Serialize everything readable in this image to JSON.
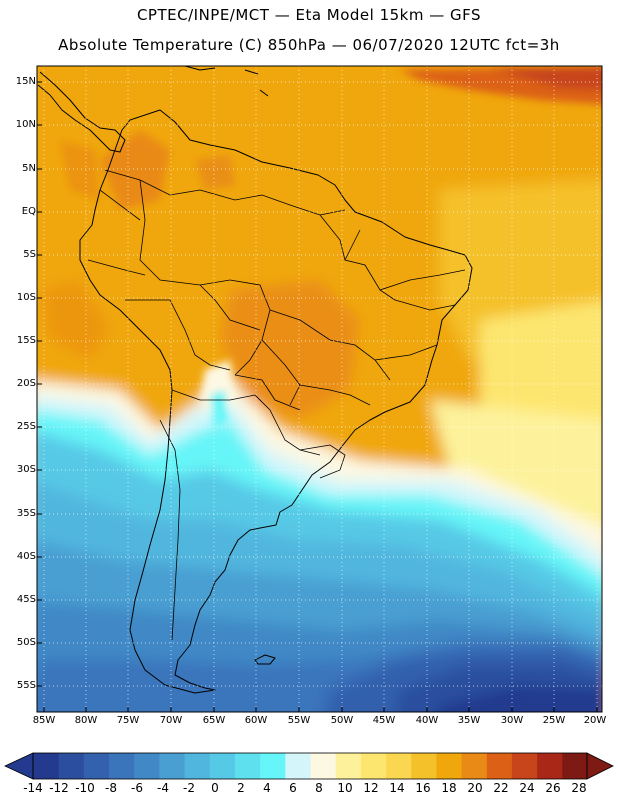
{
  "header": {
    "line1": "CPTEC/INPE/MCT —  Eta Model 15km — GFS",
    "line2": "Absolute Temperature (C) 850hPa — 06/07/2020 12UTC fct=3h"
  },
  "map": {
    "lat_labels": [
      "15N",
      "10N",
      "5N",
      "EQ",
      "5S",
      "10S",
      "15S",
      "20S",
      "25S",
      "30S",
      "35S",
      "40S",
      "45S",
      "50S",
      "55S"
    ],
    "lon_labels": [
      "85W",
      "80W",
      "75W",
      "70W",
      "65W",
      "60W",
      "55W",
      "50W",
      "45W",
      "40W",
      "35W",
      "30W",
      "25W",
      "20W"
    ]
  },
  "colorbar": {
    "labels": [
      "-14",
      "-12",
      "-10",
      "-8",
      "-6",
      "-4",
      "-2",
      "0",
      "2",
      "4",
      "6",
      "8",
      "10",
      "12",
      "14",
      "16",
      "18",
      "20",
      "22",
      "24",
      "26",
      "28"
    ],
    "colors": [
      "#233a8e",
      "#2b4f9e",
      "#3361ad",
      "#3a75bb",
      "#4189c6",
      "#4a9fd2",
      "#51b6de",
      "#56c9e6",
      "#5ee0ee",
      "#66f5f8",
      "#d4f6fb",
      "#fdf8e2",
      "#fdf29b",
      "#fde66f",
      "#fbd751",
      "#f5c12a",
      "#f0a70c",
      "#e98a16",
      "#dc6016",
      "#c8441a",
      "#a82717",
      "#7d1a14"
    ],
    "low_color": "#233a8e",
    "high_color": "#7d1a14"
  }
}
